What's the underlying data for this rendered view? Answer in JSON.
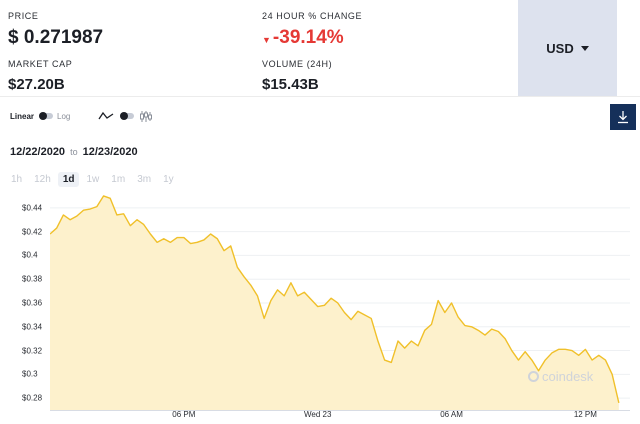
{
  "stats": {
    "price_label": "PRICE",
    "price_value": "$ 0.271987",
    "change_label": "24 HOUR % CHANGE",
    "change_value": "-39.14%",
    "change_arrow": "down-triangle-icon",
    "market_cap_label": "MARKET CAP",
    "market_cap_value": "$27.20B",
    "volume_label": "VOLUME (24H)",
    "volume_value": "$15.43B"
  },
  "currency": {
    "label": "USD"
  },
  "scale": {
    "linear": "Linear",
    "log": "Log",
    "selected": "Linear"
  },
  "date_range": {
    "from": "12/22/2020",
    "to_word": "to",
    "to": "12/23/2020"
  },
  "periods": [
    "1h",
    "12h",
    "1d",
    "1w",
    "1m",
    "3m",
    "1y"
  ],
  "active_period": "1d",
  "watermark": "coindesk",
  "colors": {
    "line": "#f0c02a",
    "fill": "#fdf1cc",
    "change_down": "#e53935",
    "download_bg": "#15305a",
    "currency_bg": "#dde2ee"
  },
  "chart_data": {
    "type": "area",
    "y_ticks": [
      "$0.44",
      "$0.42",
      "$0.4",
      "$0.38",
      "$0.36",
      "$0.34",
      "$0.32",
      "$0.3",
      "$0.28"
    ],
    "y_tick_values": [
      0.44,
      0.42,
      0.4,
      0.38,
      0.36,
      0.34,
      0.32,
      0.3,
      0.28
    ],
    "x_ticks": [
      "06 PM",
      "Wed 23",
      "06 AM",
      "12 PM"
    ],
    "x_tick_values": [
      6,
      12,
      18,
      24
    ],
    "x_range": [
      0,
      26
    ],
    "ylim": [
      0.27,
      0.455
    ],
    "grid": true,
    "series": [
      {
        "x": [
          0.0,
          0.3,
          0.6,
          0.9,
          1.2,
          1.5,
          1.8,
          2.1,
          2.4,
          2.7,
          3.0,
          3.3,
          3.6,
          3.9,
          4.2,
          4.5,
          4.8,
          5.1,
          5.4,
          5.7,
          6.0,
          6.3,
          6.6,
          6.9,
          7.2,
          7.5,
          7.8,
          8.1,
          8.4,
          8.7,
          9.0,
          9.3,
          9.6,
          9.9,
          10.2,
          10.5,
          10.8,
          11.1,
          11.4,
          11.7,
          12.0,
          12.3,
          12.6,
          12.9,
          13.2,
          13.5,
          13.8,
          14.1,
          14.4,
          14.7,
          15.0,
          15.3,
          15.6,
          15.9,
          16.2,
          16.5,
          16.8,
          17.1,
          17.4,
          17.7,
          18.0,
          18.3,
          18.6,
          18.9,
          19.2,
          19.5,
          19.8,
          20.1,
          20.4,
          20.7,
          21.0,
          21.3,
          21.6,
          21.9,
          22.2,
          22.5,
          22.8,
          23.1,
          23.4,
          23.7,
          24.0,
          24.3,
          24.6,
          24.9,
          25.2,
          25.5
        ],
        "y": [
          0.418,
          0.423,
          0.434,
          0.43,
          0.433,
          0.438,
          0.439,
          0.441,
          0.45,
          0.448,
          0.434,
          0.435,
          0.425,
          0.43,
          0.426,
          0.418,
          0.411,
          0.414,
          0.411,
          0.415,
          0.415,
          0.41,
          0.411,
          0.413,
          0.418,
          0.414,
          0.404,
          0.408,
          0.39,
          0.382,
          0.375,
          0.366,
          0.347,
          0.362,
          0.371,
          0.366,
          0.377,
          0.366,
          0.369,
          0.363,
          0.357,
          0.358,
          0.364,
          0.36,
          0.352,
          0.346,
          0.353,
          0.35,
          0.347,
          0.328,
          0.312,
          0.31,
          0.328,
          0.322,
          0.328,
          0.324,
          0.337,
          0.342,
          0.362,
          0.352,
          0.36,
          0.348,
          0.341,
          0.34,
          0.337,
          0.333,
          0.338,
          0.336,
          0.33,
          0.32,
          0.312,
          0.319,
          0.312,
          0.303,
          0.312,
          0.318,
          0.321,
          0.321,
          0.32,
          0.316,
          0.321,
          0.312,
          0.316,
          0.312,
          0.3,
          0.276
        ]
      }
    ]
  }
}
